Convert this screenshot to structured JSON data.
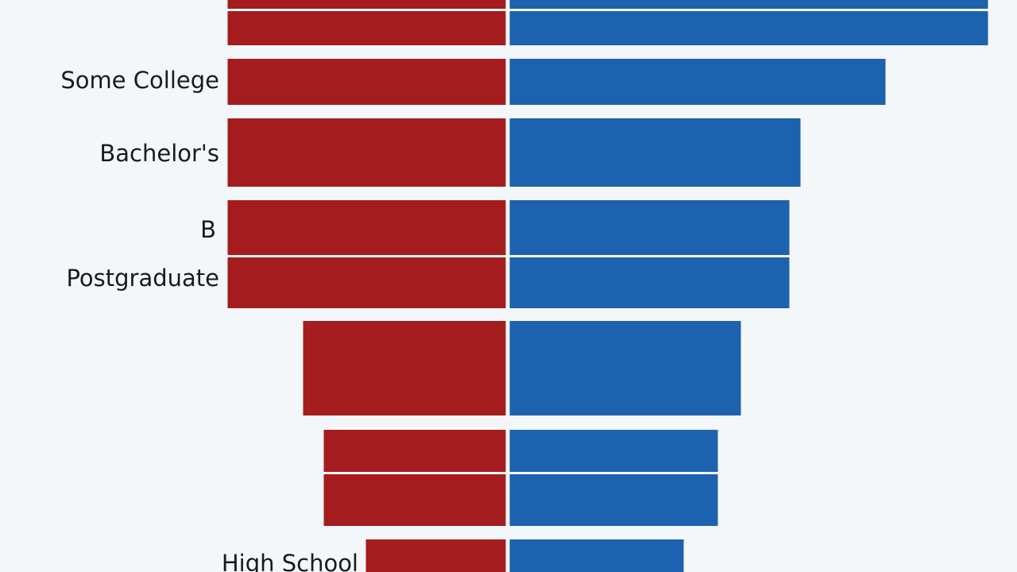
{
  "chart_data": {
    "type": "bar",
    "orientation": "horizontal-diverging",
    "title": "",
    "xlabel": "",
    "ylabel": "",
    "colors": {
      "left": "#a51c1e",
      "right": "#1d62ae",
      "background": "#f4f7fa"
    },
    "series": [
      {
        "name": "",
        "side": "left",
        "color": "#a51c1e"
      },
      {
        "name": "",
        "side": "right",
        "color": "#1d62ae"
      }
    ],
    "rows": [
      {
        "label": "",
        "left": 350,
        "right": 602
      },
      {
        "label": "",
        "left": 350,
        "right": 602
      },
      {
        "label": "Some College",
        "left": 350,
        "right": 473
      },
      {
        "label": "Bachelor's",
        "left": 350,
        "right": 366
      },
      {
        "label": "B",
        "left": 350,
        "right": 352
      },
      {
        "label": "Postgraduate",
        "left": 350,
        "right": 352
      },
      {
        "label": "",
        "left": 255,
        "right": 291
      },
      {
        "label": "",
        "left": 229,
        "right": 262
      },
      {
        "label": "",
        "left": 229,
        "right": 262
      },
      {
        "label": "High School",
        "left": 176,
        "right": 219
      }
    ]
  }
}
